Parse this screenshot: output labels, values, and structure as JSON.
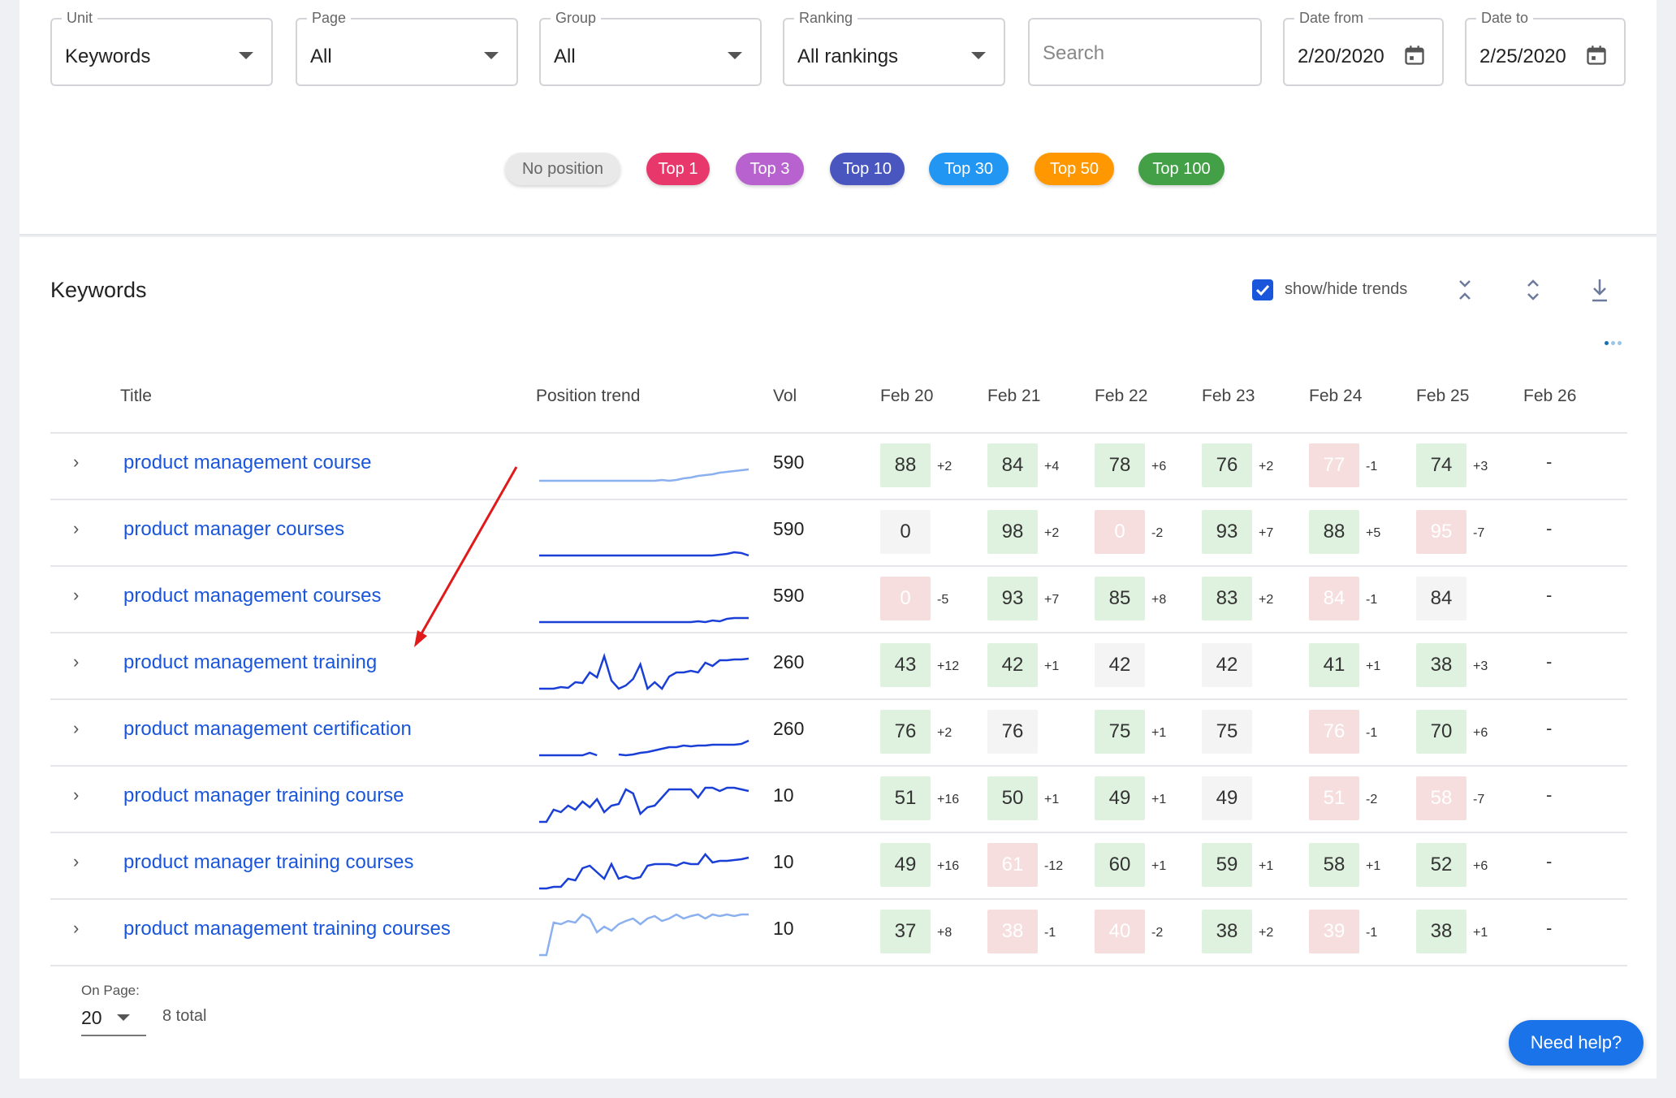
{
  "filters": {
    "unit": {
      "label": "Unit",
      "value": "Keywords"
    },
    "page": {
      "label": "Page",
      "value": "All"
    },
    "group": {
      "label": "Group",
      "value": "All"
    },
    "ranking": {
      "label": "Ranking",
      "value": "All rankings"
    },
    "search": {
      "placeholder": "Search"
    },
    "date_from": {
      "label": "Date from",
      "value": "2/20/2020"
    },
    "date_to": {
      "label": "Date to",
      "value": "2/25/2020"
    }
  },
  "chips": [
    {
      "label": "No position",
      "color": "#e9e9ea",
      "text_color": "#666666"
    },
    {
      "label": "Top 1",
      "color": "#e8386b",
      "text_color": "#ffffff"
    },
    {
      "label": "Top 3",
      "color": "#b862cf",
      "text_color": "#ffffff"
    },
    {
      "label": "Top 10",
      "color": "#4a56c0",
      "text_color": "#ffffff"
    },
    {
      "label": "Top 30",
      "color": "#2296f3",
      "text_color": "#ffffff"
    },
    {
      "label": "Top 50",
      "color": "#ff9800",
      "text_color": "#ffffff"
    },
    {
      "label": "Top 100",
      "color": "#43a047",
      "text_color": "#ffffff"
    }
  ],
  "section": {
    "title": "Keywords",
    "trend_toggle_label": "show/hide trends",
    "trend_toggle_checked": true,
    "icons": [
      "collapse-all-icon",
      "expand-all-icon",
      "download-icon"
    ]
  },
  "table": {
    "headers": {
      "title": "Title",
      "trend": "Position trend",
      "vol": "Vol",
      "dates": [
        "Feb 20",
        "Feb 21",
        "Feb 22",
        "Feb 23",
        "Feb 24",
        "Feb 25",
        "Feb 26"
      ]
    },
    "rows": [
      {
        "keyword": "product management course",
        "vol": "590",
        "trend_color": "#8ab0f0",
        "trend": [
          90,
          90,
          90,
          90,
          90,
          90,
          90,
          90,
          90,
          90,
          90,
          90,
          90,
          90,
          90,
          90,
          90,
          89,
          90,
          89,
          87,
          86,
          84,
          83,
          82,
          80,
          79,
          78,
          77,
          76
        ],
        "cells": [
          {
            "v": "88",
            "d": "+2",
            "s": "up"
          },
          {
            "v": "84",
            "d": "+4",
            "s": "up"
          },
          {
            "v": "78",
            "d": "+6",
            "s": "up"
          },
          {
            "v": "76",
            "d": "+2",
            "s": "up"
          },
          {
            "v": "77",
            "d": "-1",
            "s": "down"
          },
          {
            "v": "74",
            "d": "+3",
            "s": "up"
          }
        ],
        "last": "-"
      },
      {
        "keyword": "product manager courses",
        "vol": "590",
        "trend_color": "#1a3fd6",
        "trend": [
          100,
          100,
          100,
          100,
          100,
          100,
          100,
          100,
          100,
          100,
          100,
          100,
          100,
          100,
          100,
          100,
          100,
          100,
          100,
          100,
          100,
          100,
          100,
          100,
          100,
          99,
          98,
          96,
          97,
          100
        ],
        "cells": [
          {
            "v": "0",
            "d": "",
            "s": "same"
          },
          {
            "v": "98",
            "d": "+2",
            "s": "up"
          },
          {
            "v": "0",
            "d": "-2",
            "s": "down"
          },
          {
            "v": "93",
            "d": "+7",
            "s": "up"
          },
          {
            "v": "88",
            "d": "+5",
            "s": "up"
          },
          {
            "v": "95",
            "d": "-7",
            "s": "down"
          }
        ],
        "last": "-"
      },
      {
        "keyword": "product management courses",
        "vol": "590",
        "trend_color": "#1a3fd6",
        "trend": [
          100,
          100,
          100,
          100,
          100,
          100,
          100,
          100,
          100,
          100,
          100,
          100,
          100,
          100,
          100,
          100,
          100,
          100,
          100,
          100,
          100,
          100,
          99,
          100,
          98,
          99,
          96,
          95,
          95,
          95
        ],
        "cells": [
          {
            "v": "0",
            "d": "-5",
            "s": "down"
          },
          {
            "v": "93",
            "d": "+7",
            "s": "up"
          },
          {
            "v": "85",
            "d": "+8",
            "s": "up"
          },
          {
            "v": "83",
            "d": "+2",
            "s": "up"
          },
          {
            "v": "84",
            "d": "-1",
            "s": "down"
          },
          {
            "v": "84",
            "d": "",
            "s": "same"
          }
        ],
        "last": "-"
      },
      {
        "keyword": "product management training",
        "vol": "260",
        "trend_color": "#1a3fd6",
        "trend": [
          100,
          100,
          100,
          98,
          99,
          92,
          93,
          80,
          86,
          60,
          90,
          100,
          96,
          88,
          70,
          100,
          92,
          100,
          85,
          80,
          80,
          78,
          80,
          68,
          72,
          65,
          65,
          64,
          64,
          63
        ],
        "cells": [
          {
            "v": "43",
            "d": "+12",
            "s": "up"
          },
          {
            "v": "42",
            "d": "+1",
            "s": "up"
          },
          {
            "v": "42",
            "d": "",
            "s": "same"
          },
          {
            "v": "42",
            "d": "",
            "s": "same"
          },
          {
            "v": "41",
            "d": "+1",
            "s": "up"
          },
          {
            "v": "38",
            "d": "+3",
            "s": "up"
          }
        ],
        "last": "-"
      },
      {
        "keyword": "product management certification",
        "vol": "260",
        "trend_color": "#1a3fd6",
        "trend": [
          100,
          100,
          100,
          100,
          100,
          100,
          100,
          97,
          100,
          null,
          null,
          99,
          100,
          99,
          97,
          96,
          94,
          92,
          90,
          90,
          88,
          89,
          88,
          88,
          87,
          87,
          87,
          87,
          86,
          82
        ],
        "cells": [
          {
            "v": "76",
            "d": "+2",
            "s": "up"
          },
          {
            "v": "76",
            "d": "",
            "s": "same"
          },
          {
            "v": "75",
            "d": "+1",
            "s": "up"
          },
          {
            "v": "75",
            "d": "",
            "s": "same"
          },
          {
            "v": "76",
            "d": "-1",
            "s": "down"
          },
          {
            "v": "70",
            "d": "+6",
            "s": "up"
          }
        ],
        "last": "-"
      },
      {
        "keyword": "product manager training course",
        "vol": "10",
        "trend_color": "#1a3fd6",
        "trend": [
          100,
          100,
          85,
          88,
          80,
          85,
          75,
          82,
          72,
          88,
          80,
          78,
          60,
          65,
          90,
          82,
          80,
          70,
          60,
          60,
          60,
          60,
          70,
          58,
          58,
          62,
          58,
          58,
          60,
          62
        ],
        "cells": [
          {
            "v": "51",
            "d": "+16",
            "s": "up"
          },
          {
            "v": "50",
            "d": "+1",
            "s": "up"
          },
          {
            "v": "49",
            "d": "+1",
            "s": "up"
          },
          {
            "v": "49",
            "d": "",
            "s": "same"
          },
          {
            "v": "51",
            "d": "-2",
            "s": "down"
          },
          {
            "v": "58",
            "d": "-7",
            "s": "down"
          }
        ],
        "last": "-"
      },
      {
        "keyword": "product manager training courses",
        "vol": "10",
        "trend_color": "#1a3fd6",
        "trend": [
          100,
          100,
          98,
          98,
          88,
          90,
          75,
          72,
          80,
          88,
          70,
          88,
          85,
          88,
          86,
          72,
          70,
          70,
          70,
          72,
          68,
          70,
          70,
          58,
          68,
          66,
          66,
          65,
          64,
          62
        ],
        "cells": [
          {
            "v": "49",
            "d": "+16",
            "s": "up"
          },
          {
            "v": "61",
            "d": "-12",
            "s": "down"
          },
          {
            "v": "60",
            "d": "+1",
            "s": "up"
          },
          {
            "v": "59",
            "d": "+1",
            "s": "up"
          },
          {
            "v": "58",
            "d": "+1",
            "s": "up"
          },
          {
            "v": "52",
            "d": "+6",
            "s": "up"
          }
        ],
        "last": "-"
      },
      {
        "keyword": "product management training courses",
        "vol": "10",
        "trend_color": "#8ab0f0",
        "trend": [
          100,
          100,
          60,
          62,
          58,
          60,
          50,
          55,
          72,
          65,
          70,
          62,
          58,
          55,
          62,
          55,
          52,
          58,
          55,
          50,
          55,
          52,
          50,
          55,
          50,
          52,
          50,
          52,
          50,
          50
        ],
        "cells": [
          {
            "v": "37",
            "d": "+8",
            "s": "up"
          },
          {
            "v": "38",
            "d": "-1",
            "s": "down"
          },
          {
            "v": "40",
            "d": "-2",
            "s": "down"
          },
          {
            "v": "38",
            "d": "+2",
            "s": "up"
          },
          {
            "v": "39",
            "d": "-1",
            "s": "down"
          },
          {
            "v": "38",
            "d": "+1",
            "s": "up"
          }
        ],
        "last": "-"
      }
    ]
  },
  "pagination": {
    "label": "On Page:",
    "value": "20",
    "total": "8 total"
  },
  "help_button": "Need help?",
  "annotation": {
    "color": "#e01a1a"
  }
}
